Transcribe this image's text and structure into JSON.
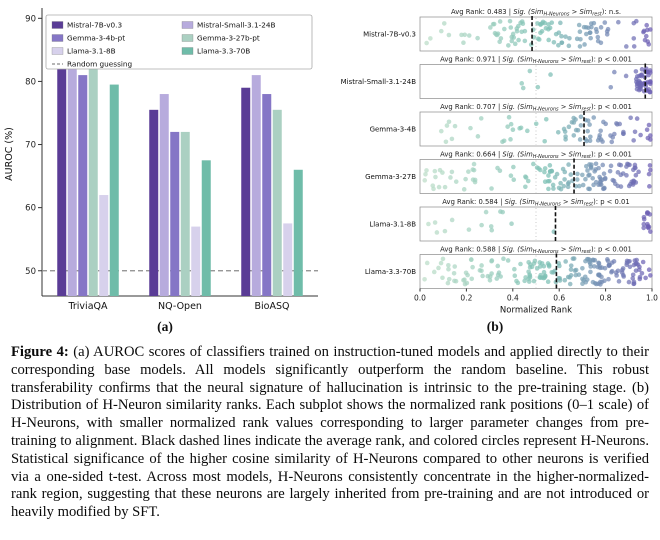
{
  "figure": {
    "panel_a_tag": "(a)",
    "panel_b_tag": "(b)"
  },
  "caption": {
    "label": "Figure 4:",
    "text": " (a) AUROC scores of classifiers trained on instruction-tuned models and applied directly to their corresponding base models. All models significantly outperform the random baseline. This robust transferability confirms that the neural signature of hallucination is intrinsic to the pre-training stage. (b) Distribution of H-Neuron similarity ranks. Each subplot shows the normalized rank positions (0–1 scale) of H-Neurons, with smaller normalized rank values corresponding to larger parameter changes from pre-training to alignment. Black dashed lines indicate the average rank, and colored circles represent H-Neurons. Statistical significance of the higher cosine similarity of H-Neurons compared to other neurons is verified via a one-sided t-test. Across most models, H-Neurons consistently concentrate in the higher-normalized-rank region, suggesting that these neurons are largely inherited from pre-training and are not introduced or heavily modified by SFT."
  },
  "chart_data": [
    {
      "type": "bar",
      "panel": "a",
      "ylabel": "AUROC (%)",
      "ylim": [
        46,
        91
      ],
      "yticks": [
        50,
        60,
        70,
        80,
        90
      ],
      "categories": [
        "TriviaQA",
        "NQ-Open",
        "BioASQ"
      ],
      "series": [
        {
          "name": "Mistral-7B-v0.3",
          "color": "#5a3c96",
          "values": [
            86.5,
            75.5,
            79.0
          ]
        },
        {
          "name": "Mistral-Small-3.1-24B",
          "color": "#b7abdd",
          "values": [
            87.0,
            78.0,
            81.0
          ]
        },
        {
          "name": "Gemma-3-4b-pt",
          "color": "#8576c6",
          "values": [
            81.0,
            72.0,
            78.0
          ]
        },
        {
          "name": "Gemma-3-27b-pt",
          "color": "#abd0c2",
          "values": [
            83.0,
            72.0,
            75.5
          ]
        },
        {
          "name": "Llama-3.1-8B",
          "color": "#d7d1ec",
          "values": [
            62.0,
            57.0,
            57.5
          ]
        },
        {
          "name": "Llama-3.3-70B",
          "color": "#6fbca9",
          "values": [
            79.5,
            67.5,
            66.0
          ]
        }
      ],
      "baseline": {
        "label": "Random guessing",
        "value": 50,
        "style": "dashed",
        "color": "#8a8a8a"
      },
      "legend_order": [
        [
          "Mistral-7B-v0.3",
          "Gemma-3-4b-pt",
          "Llama-3.1-8B",
          "Random guessing"
        ],
        [
          "Mistral-Small-3.1-24B",
          "Gemma-3-27b-pt",
          "Llama-3.3-70B"
        ]
      ]
    },
    {
      "type": "strip",
      "panel": "b",
      "xlabel": "Normalized Rank",
      "xlim": [
        0,
        1
      ],
      "xticks": [
        "0.0",
        "0.2",
        "0.4",
        "0.6",
        "0.8",
        "1.0"
      ],
      "refline": 0.5,
      "title_parts": {
        "avg_prefix": "Avg Rank: ",
        "sep": "  |  ",
        "sig_prefix": "Sig. (Sim",
        "sub1": "H-Neurons",
        "gt": " > Sim",
        "sub2": "rest",
        "close": "): "
      },
      "dot_colors": {
        "low": "#bedec8",
        "mid": "#7cc0b4",
        "high": "#6c5cb4"
      },
      "rows": [
        {
          "label": "Mistral-7B-v0.3",
          "avg_rank": 0.483,
          "sig": "n.s.",
          "n": 110,
          "clusters": [
            [
              0.02,
              1.0,
              0.75
            ],
            [
              0.3,
              0.78,
              0.25
            ]
          ]
        },
        {
          "label": "Mistral-Small-3.1-24B",
          "avg_rank": 0.971,
          "sig": "p < 0.001",
          "n": 55,
          "clusters": [
            [
              0.93,
              1.0,
              0.86
            ],
            [
              0.35,
              0.9,
              0.14
            ]
          ]
        },
        {
          "label": "Gemma-3-4B",
          "avg_rank": 0.707,
          "sig": "p < 0.001",
          "n": 75,
          "clusters": [
            [
              0.08,
              1.0,
              0.5
            ],
            [
              0.62,
              1.0,
              0.5
            ]
          ]
        },
        {
          "label": "Gemma-3-27B",
          "avg_rank": 0.664,
          "sig": "p < 0.001",
          "n": 140,
          "clusters": [
            [
              0.02,
              1.0,
              0.5
            ],
            [
              0.55,
              1.0,
              0.5
            ]
          ]
        },
        {
          "label": "Llama-3.1-8B",
          "avg_rank": 0.584,
          "sig": "p < 0.01",
          "n": 28,
          "clusters": [
            [
              0.03,
              0.65,
              0.58
            ],
            [
              0.96,
              1.0,
              0.42
            ]
          ]
        },
        {
          "label": "Llama-3.3-70B",
          "avg_rank": 0.588,
          "sig": "p < 0.001",
          "n": 190,
          "clusters": [
            [
              0.0,
              1.0,
              0.55
            ],
            [
              0.45,
              0.95,
              0.45
            ]
          ]
        }
      ]
    }
  ]
}
